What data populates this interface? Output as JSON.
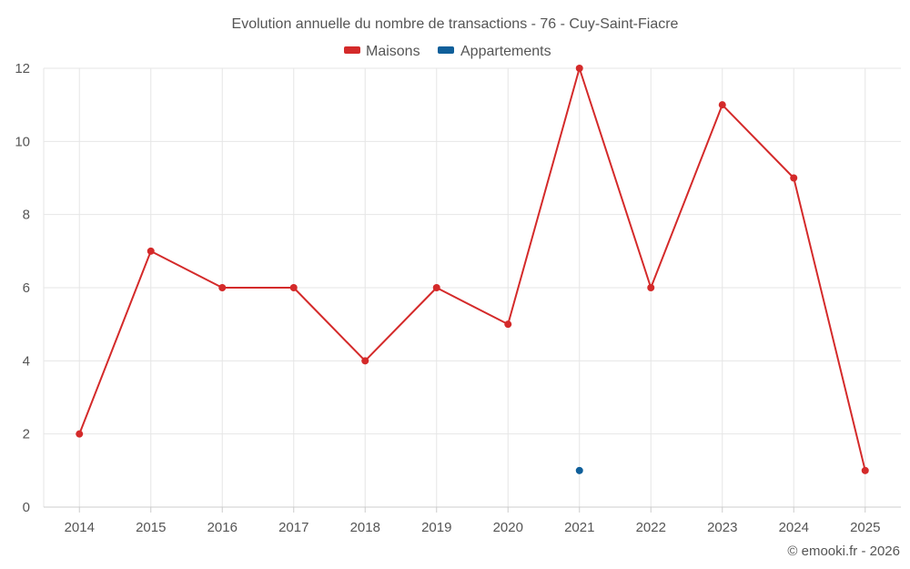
{
  "chart_data": {
    "type": "line",
    "title": "Evolution annuelle du nombre de transactions - 76 - Cuy-Saint-Fiacre",
    "xlabel": "",
    "ylabel": "",
    "categories": [
      "2014",
      "2015",
      "2016",
      "2017",
      "2018",
      "2019",
      "2020",
      "2021",
      "2022",
      "2023",
      "2024",
      "2025"
    ],
    "y_ticks": [
      "0",
      "2",
      "4",
      "6",
      "8",
      "10",
      "12"
    ],
    "ylim": [
      0,
      12
    ],
    "grid": true,
    "legend_position": "top-center",
    "series": [
      {
        "name": "Maisons",
        "color": "#d42a2a",
        "values": [
          2,
          7,
          6,
          6,
          4,
          6,
          5,
          12,
          6,
          11,
          9,
          1
        ]
      },
      {
        "name": "Appartements",
        "color": "#0f5f9a",
        "values": [
          null,
          null,
          null,
          null,
          null,
          null,
          null,
          1,
          null,
          null,
          null,
          null
        ]
      }
    ],
    "credit": "© emooki.fr - 2026"
  }
}
